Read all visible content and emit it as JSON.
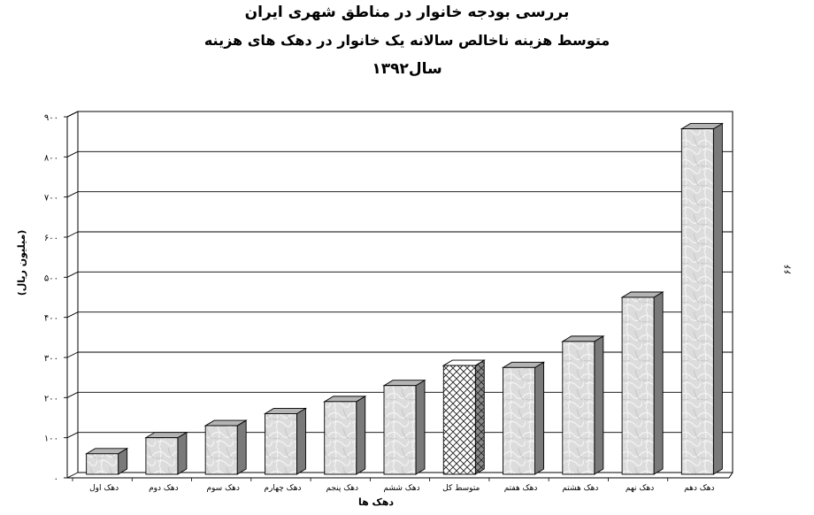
{
  "page": {
    "title_line1": "بررسی بودجه خانوار در مناطق شهری ایران",
    "title_line2": "متوسط هزینه ناخالص سالانه یک خانوار در دهک های هزینه",
    "title_line3": "سال۱۳۹۲",
    "page_number": "۶۶"
  },
  "chart_data": {
    "type": "bar",
    "title": "متوسط هزینه ناخالص سالانه یک خانوار در دهک های هزینه",
    "xlabel": "دهک ها",
    "ylabel": "(میلیون ریال)",
    "ylim": [
      0,
      900
    ],
    "yticks": [
      0,
      100,
      200,
      300,
      400,
      500,
      600,
      700,
      800,
      900
    ],
    "ytick_labels": [
      "٠",
      "١٠٠",
      "٢٠٠",
      "٣٠٠",
      "۴٠٠",
      "۵٠٠",
      "۶٠٠",
      "٧٠٠",
      "٨٠٠",
      "٩٠٠"
    ],
    "grid": true,
    "categories": [
      "دهک اول",
      "دهک دوم",
      "دهک سوم",
      "دهک چهارم",
      "دهک پنجم",
      "دهک ششم",
      "متوسط کل",
      "دهک هفتم",
      "دهک هشتم",
      "دهک نهم",
      "دهک دهم"
    ],
    "values": [
      60,
      100,
      130,
      160,
      190,
      230,
      280,
      275,
      340,
      450,
      870
    ],
    "highlight_category": "متوسط کل",
    "colors": {
      "bar": "#d8d8d8",
      "bar_side": "#7a7a7a",
      "bar_top": "#b4b4b4",
      "highlight": "#ffffff"
    }
  }
}
